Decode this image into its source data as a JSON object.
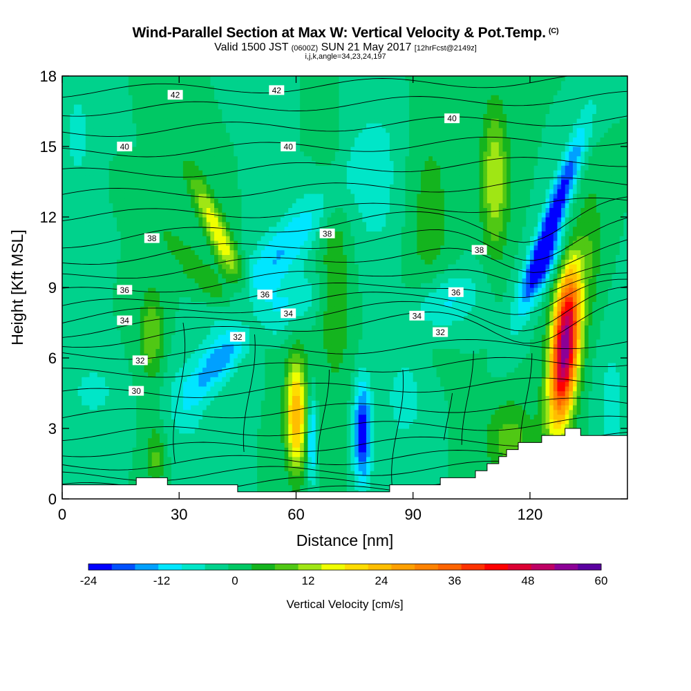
{
  "header": {
    "title": "Wind-Parallel Section at Max W: Vertical Velocity & Pot.Temp.",
    "title_mark": "(C)",
    "subtitle_a": "Valid 1500 JST",
    "subtitle_b": "(0600Z)",
    "subtitle_c": "SUN 21 May 2017",
    "subtitle_d": "[12hrFcst@2149z]",
    "info": "i,j,k,angle=34,23,24,197"
  },
  "chart_data": {
    "type": "heatmap",
    "xlabel": "Distance [nm]",
    "ylabel": "Height [Kft MSL]",
    "xlim": [
      0,
      145
    ],
    "ylim": [
      0,
      18
    ],
    "x_ticks": [
      0,
      30,
      60,
      90,
      120
    ],
    "y_ticks": [
      0,
      3,
      6,
      9,
      12,
      15,
      18
    ],
    "grid": false,
    "colorbar": {
      "title": "Vertical Velocity [cm/s]",
      "levels": [
        -24,
        -20,
        -16,
        -12,
        -8,
        -4,
        0,
        4,
        8,
        12,
        16,
        20,
        24,
        28,
        32,
        36,
        40,
        44,
        48,
        52,
        56,
        60
      ],
      "tick_labels": [
        "-24",
        "-12",
        "0",
        "12",
        "24",
        "36",
        "48",
        "60"
      ],
      "tick_values": [
        -24,
        -12,
        0,
        12,
        24,
        36,
        48,
        60
      ],
      "colors": [
        "#0000ff",
        "#0050ff",
        "#00a0ff",
        "#00e6ff",
        "#00e6c8",
        "#00d28c",
        "#00c864",
        "#14b41e",
        "#50c814",
        "#a0e614",
        "#f0ff00",
        "#ffdc00",
        "#ffbe00",
        "#ffa000",
        "#ff8200",
        "#ff6400",
        "#ff3200",
        "#ff0000",
        "#dc0032",
        "#be0064",
        "#8c0096",
        "#5a00a0"
      ]
    },
    "updraft_maxima": [
      {
        "x": 129,
        "y": 6.5,
        "w": 60
      },
      {
        "x": 60,
        "y": 3.5,
        "w": 28
      },
      {
        "x": 40,
        "y": 11.5,
        "w": 20
      },
      {
        "x": 112,
        "y": 13.5,
        "w": 16
      },
      {
        "x": 23,
        "y": 7.0,
        "w": 14
      }
    ],
    "downdraft_minima": [
      {
        "x": 126,
        "y": 12.0,
        "w": -24
      },
      {
        "x": 77,
        "y": 2.5,
        "w": -24
      },
      {
        "x": 64,
        "y": 2.5,
        "w": -16
      },
      {
        "x": 40,
        "y": 5.5,
        "w": -16
      }
    ],
    "theta_contours": {
      "label_values": [
        "30",
        "32",
        "34",
        "36",
        "38",
        "40",
        "42"
      ],
      "labels": [
        {
          "text": "42",
          "x": 29,
          "y": 17.2
        },
        {
          "text": "42",
          "x": 55,
          "y": 17.4
        },
        {
          "text": "40",
          "x": 16,
          "y": 15.0
        },
        {
          "text": "40",
          "x": 58,
          "y": 15.0
        },
        {
          "text": "40",
          "x": 100,
          "y": 16.2
        },
        {
          "text": "38",
          "x": 23,
          "y": 11.1
        },
        {
          "text": "38",
          "x": 68,
          "y": 11.3
        },
        {
          "text": "38",
          "x": 107,
          "y": 10.6
        },
        {
          "text": "36",
          "x": 16,
          "y": 8.9
        },
        {
          "text": "36",
          "x": 52,
          "y": 8.7
        },
        {
          "text": "36",
          "x": 101,
          "y": 8.8
        },
        {
          "text": "34",
          "x": 16,
          "y": 7.6
        },
        {
          "text": "34",
          "x": 58,
          "y": 7.9
        },
        {
          "text": "34",
          "x": 91,
          "y": 7.8
        },
        {
          "text": "32",
          "x": 20,
          "y": 5.9
        },
        {
          "text": "32",
          "x": 45,
          "y": 6.9
        },
        {
          "text": "32",
          "x": 97,
          "y": 7.1
        },
        {
          "text": "30",
          "x": 19,
          "y": 4.6
        }
      ]
    }
  }
}
